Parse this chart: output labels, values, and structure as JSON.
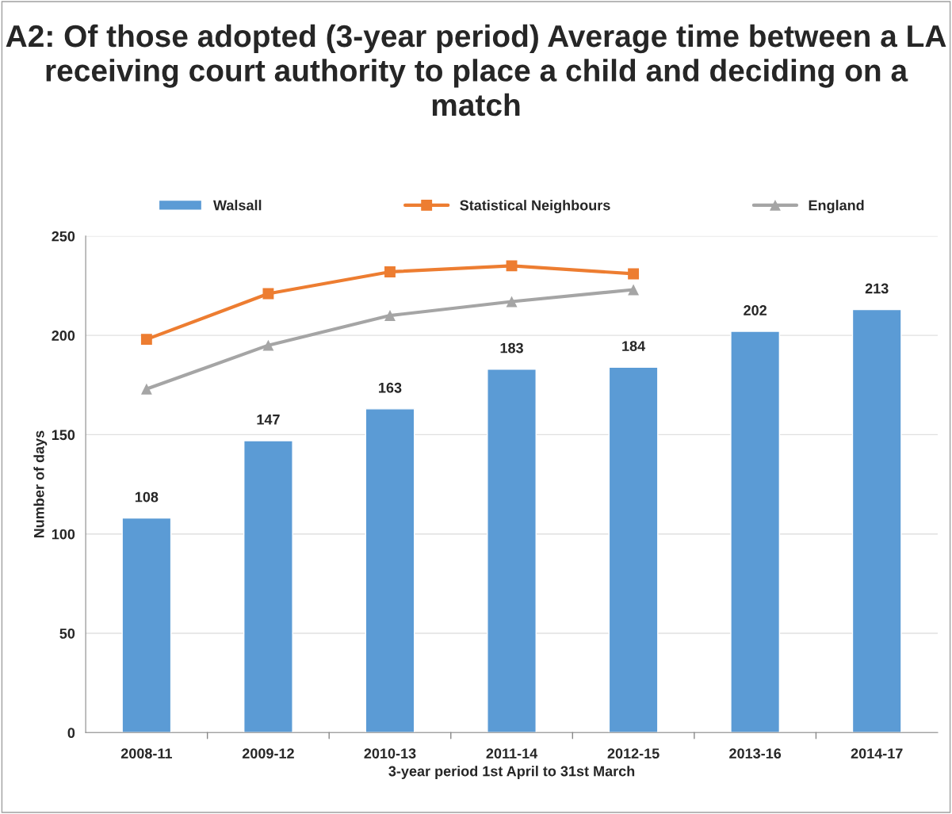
{
  "chart_data": {
    "type": "bar",
    "title": "A2: Of those adopted (3-year period) Average time between a LA receiving court authority to place a child and deciding on a match",
    "xlabel": "3-year period 1st April to 31st March",
    "ylabel": "Number of days",
    "categories": [
      "2008-11",
      "2009-12",
      "2010-13",
      "2011-14",
      "2012-15",
      "2013-16",
      "2014-17"
    ],
    "series": [
      {
        "name": "Walsall",
        "color": "#5b9bd5",
        "values": [
          108,
          147,
          163,
          183,
          184,
          202,
          213
        ],
        "value_labels": [
          "108",
          "147",
          "163",
          "183",
          "184",
          "202",
          "213"
        ]
      },
      {
        "name": "Statistical Neighbours",
        "type": "line",
        "color": "#ed7d31",
        "marker": "square",
        "values": [
          198,
          221,
          232,
          235,
          231,
          null,
          null
        ]
      },
      {
        "name": "England",
        "type": "line",
        "color": "#a5a5a5",
        "marker": "triangle",
        "values": [
          173,
          195,
          210,
          217,
          223,
          null,
          null
        ]
      }
    ],
    "ylim": [
      0,
      250
    ],
    "yticks": [
      0,
      50,
      100,
      150,
      200,
      250
    ],
    "grid": "y",
    "legend": "top"
  }
}
